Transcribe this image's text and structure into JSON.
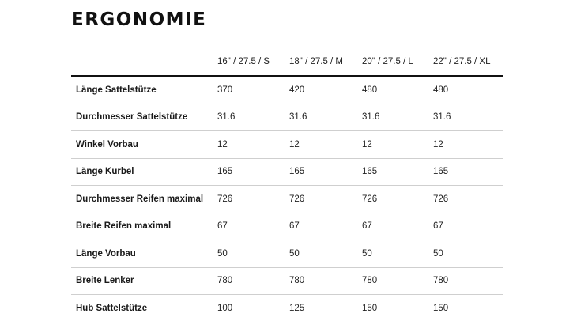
{
  "title": "ERGONOMIE",
  "table": {
    "columns": [
      "",
      "16\" / 27.5 / S",
      "18\" / 27.5 / M",
      "20\" / 27.5 / L",
      "22\" / 27.5 / XL"
    ],
    "rows": [
      {
        "label": "Länge Sattelstütze",
        "values": [
          "370",
          "420",
          "480",
          "480"
        ]
      },
      {
        "label": "Durchmesser Sattelstütze",
        "values": [
          "31.6",
          "31.6",
          "31.6",
          "31.6"
        ]
      },
      {
        "label": "Winkel Vorbau",
        "values": [
          "12",
          "12",
          "12",
          "12"
        ]
      },
      {
        "label": "Länge Kurbel",
        "values": [
          "165",
          "165",
          "165",
          "165"
        ]
      },
      {
        "label": "Durchmesser Reifen maximal",
        "values": [
          "726",
          "726",
          "726",
          "726"
        ]
      },
      {
        "label": "Breite Reifen maximal",
        "values": [
          "67",
          "67",
          "67",
          "67"
        ]
      },
      {
        "label": "Länge Vorbau",
        "values": [
          "50",
          "50",
          "50",
          "50"
        ]
      },
      {
        "label": "Breite Lenker",
        "values": [
          "780",
          "780",
          "780",
          "780"
        ]
      },
      {
        "label": "Hub Sattelstütze",
        "values": [
          "100",
          "125",
          "150",
          "150"
        ]
      }
    ]
  }
}
